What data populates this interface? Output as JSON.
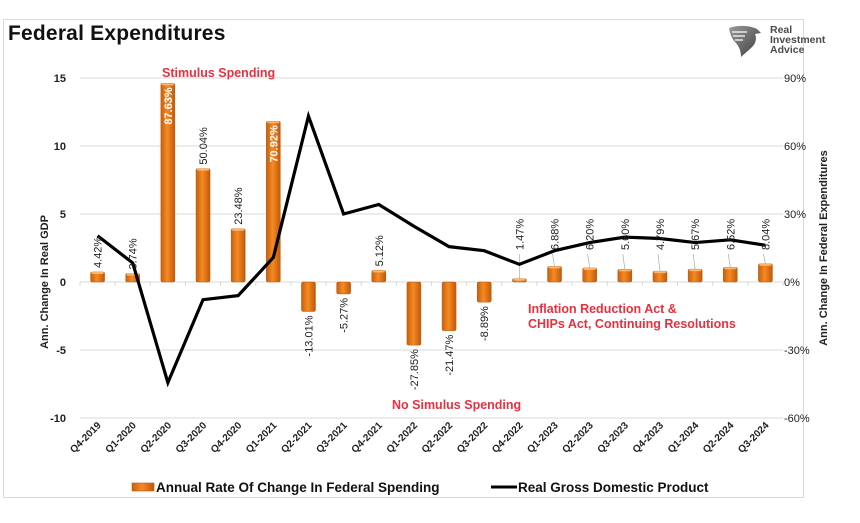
{
  "header": {
    "title": "Federal Expenditures",
    "logo_lines": [
      "Real",
      "Investment",
      "Advice"
    ],
    "logo_icon": "eagle-head-icon"
  },
  "chart_data": {
    "type": "bar+line",
    "title": "Federal Expenditures",
    "categories": [
      "Q4-2019",
      "Q1-2020",
      "Q2-2020",
      "Q3-2020",
      "Q4-2020",
      "Q1-2021",
      "Q2-2021",
      "Q3-2021",
      "Q4-2021",
      "Q1-2022",
      "Q2-2022",
      "Q3-2022",
      "Q4-2022",
      "Q1-2023",
      "Q2-2023",
      "Q3-2023",
      "Q4-2023",
      "Q1-2024",
      "Q2-2024",
      "Q3-2024"
    ],
    "series": [
      {
        "name": "Annual Rate Of Change In Federal Spending",
        "type": "bar",
        "axis": "right",
        "color": "#f07f1b",
        "values": [
          4.42,
          3.74,
          87.63,
          50.04,
          23.48,
          70.92,
          -13.01,
          -5.27,
          5.12,
          -27.85,
          -21.47,
          -8.89,
          1.47,
          6.88,
          6.2,
          5.6,
          4.79,
          5.67,
          6.52,
          8.04
        ],
        "labels": [
          "4.42%",
          "3.74%",
          "87.63%",
          "50.04%",
          "23.48%",
          "70.92%",
          "-13.01%",
          "-5.27%",
          "5.12%",
          "-27.85%",
          "-21.47%",
          "-8.89%",
          "1.47%",
          "6.88%",
          "6.20%",
          "5.60%",
          "4.79%",
          "5.67%",
          "6.52%",
          "8.04%"
        ]
      },
      {
        "name": "Real Gross Domestic Product",
        "type": "line",
        "axis": "left",
        "color": "#000000",
        "values": [
          3.4,
          1.4,
          -7.4,
          -1.3,
          -1.0,
          1.8,
          12.2,
          5.0,
          5.7,
          4.1,
          2.6,
          2.3,
          1.3,
          2.3,
          2.9,
          3.3,
          3.2,
          2.9,
          3.1,
          2.7
        ]
      }
    ],
    "y_left": {
      "label": "Ann. Change In Real GDP",
      "ticks": [
        15,
        10,
        5,
        0,
        -5,
        -10
      ],
      "tick_labels": [
        "15",
        "10",
        "5",
        "0",
        "-5",
        "-10"
      ],
      "range": [
        -10,
        15
      ]
    },
    "y_right": {
      "label": "Ann. Change In Federal Expenditures",
      "ticks": [
        90,
        60,
        30,
        0,
        -30,
        -60
      ],
      "tick_labels": [
        "90%",
        "60%",
        "30%",
        "0%",
        "-30%",
        "-60%"
      ],
      "range": [
        -60,
        90
      ]
    },
    "grid": true,
    "legend_position": "bottom",
    "annotations": [
      {
        "text": "Stimulus Spending",
        "near": "Q2-2020",
        "color": "#e8313f"
      },
      {
        "text": "No Simulus Spending",
        "near": "Q1-2022",
        "color": "#e8313f"
      },
      {
        "text": "Inflation Reduction Act &",
        "near": "Q1-2023",
        "color": "#e8313f"
      },
      {
        "text": "CHIPs Act, Continuing Resolutions",
        "near": "Q1-2023",
        "color": "#e8313f"
      }
    ]
  }
}
